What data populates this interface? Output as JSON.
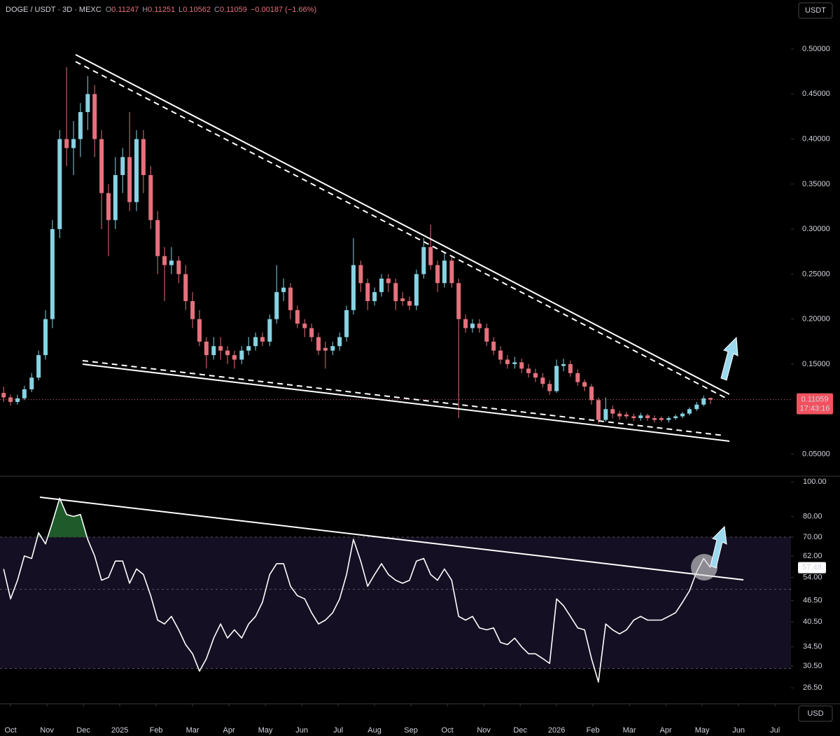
{
  "chart_data": {
    "type": "candlestick",
    "title": "DOGE / USDT · 3D · MEXC",
    "header_ohlc": [
      {
        "key": "O",
        "value": 0.11247
      },
      {
        "key": "H",
        "value": 0.11251
      },
      {
        "key": "L",
        "value": 0.10562
      },
      {
        "key": "C",
        "value": 0.11059
      }
    ],
    "change_label": "−0.00187 (−1.66%)",
    "y_axis_label": "USDT",
    "x_axis_label": "USD",
    "countdown": "17:43:16",
    "up_color": "#86d3e3",
    "down_color": "#e5717d",
    "log_scale": false,
    "grid": false,
    "xlim": [
      -0.29,
      21.44
    ],
    "xticks": [
      {
        "value": 0,
        "label": "Oct"
      },
      {
        "value": 1,
        "label": "Nov"
      },
      {
        "value": 2,
        "label": "Dec"
      },
      {
        "value": 3,
        "label": "2025"
      },
      {
        "value": 4,
        "label": "Feb"
      },
      {
        "value": 5,
        "label": "Mar"
      },
      {
        "value": 6,
        "label": "Apr"
      },
      {
        "value": 7,
        "label": "May"
      },
      {
        "value": 8,
        "label": "Jun"
      },
      {
        "value": 9,
        "label": "Jul"
      },
      {
        "value": 10,
        "label": "Aug"
      },
      {
        "value": 11,
        "label": "Sep"
      },
      {
        "value": 12,
        "label": "Oct"
      },
      {
        "value": 13,
        "label": "Nov"
      },
      {
        "value": 14,
        "label": "Dec"
      },
      {
        "value": 15,
        "label": "2026"
      },
      {
        "value": 16,
        "label": "Feb"
      },
      {
        "value": 17,
        "label": "Mar"
      },
      {
        "value": 18,
        "label": "Apr"
      },
      {
        "value": 19,
        "label": "May"
      },
      {
        "value": 20,
        "label": "Jun"
      },
      {
        "value": 21,
        "label": "Jul"
      }
    ],
    "ylim": [
      0.0255,
      0.5545
    ],
    "yticks": [
      {
        "value": 0.05,
        "label": "0.05000"
      },
      {
        "value": 0.15,
        "label": "0.15000"
      },
      {
        "value": 0.2,
        "label": "0.20000"
      },
      {
        "value": 0.25,
        "label": "0.25000"
      },
      {
        "value": 0.3,
        "label": "0.30000"
      },
      {
        "value": 0.35,
        "label": "0.35000"
      },
      {
        "value": 0.4,
        "label": "0.40000"
      },
      {
        "value": 0.45,
        "label": "0.45000"
      },
      {
        "value": 0.5,
        "label": "0.50000"
      }
    ],
    "x": [
      -0.19,
      0,
      0.19,
      0.38,
      0.58,
      0.77,
      0.96,
      1.15,
      1.35,
      1.54,
      1.73,
      1.92,
      2.12,
      2.31,
      2.5,
      2.69,
      2.88,
      3.08,
      3.27,
      3.46,
      3.65,
      3.85,
      4.04,
      4.23,
      4.42,
      4.62,
      4.81,
      5,
      5.19,
      5.38,
      5.58,
      5.77,
      5.96,
      6.15,
      6.35,
      6.54,
      6.73,
      6.92,
      7.12,
      7.31,
      7.5,
      7.69,
      7.88,
      8.08,
      8.27,
      8.46,
      8.65,
      8.85,
      9.04,
      9.23,
      9.42,
      9.62,
      9.81,
      10,
      10.19,
      10.38,
      10.58,
      10.77,
      10.96,
      11.15,
      11.35,
      11.54,
      11.73,
      11.92,
      12.12,
      12.31,
      12.5,
      12.69,
      12.88,
      13.08,
      13.27,
      13.46,
      13.65,
      13.85,
      14.04,
      14.23,
      14.42,
      14.62,
      14.81,
      15,
      15.19,
      15.38,
      15.58,
      15.77,
      15.96,
      16.15,
      16.35,
      16.54,
      16.73,
      16.92,
      17.12,
      17.31,
      17.5,
      17.69,
      17.88,
      18.08,
      18.27,
      18.46,
      18.65,
      18.85,
      19.04,
      19.23
    ],
    "open": [
      0.118,
      0.113,
      0.108,
      0.112,
      0.122,
      0.135,
      0.16,
      0.2,
      0.3,
      0.4,
      0.39,
      0.4,
      0.43,
      0.45,
      0.4,
      0.34,
      0.31,
      0.36,
      0.38,
      0.33,
      0.4,
      0.36,
      0.31,
      0.27,
      0.26,
      0.265,
      0.25,
      0.22,
      0.2,
      0.175,
      0.16,
      0.17,
      0.165,
      0.16,
      0.155,
      0.165,
      0.17,
      0.18,
      0.175,
      0.2,
      0.23,
      0.235,
      0.21,
      0.195,
      0.19,
      0.18,
      0.168,
      0.165,
      0.17,
      0.18,
      0.21,
      0.26,
      0.24,
      0.22,
      0.23,
      0.245,
      0.24,
      0.223,
      0.22,
      0.215,
      0.25,
      0.28,
      0.26,
      0.24,
      0.265,
      0.24,
      0.2,
      0.19,
      0.195,
      0.19,
      0.175,
      0.165,
      0.155,
      0.15,
      0.152,
      0.145,
      0.14,
      0.135,
      0.128,
      0.12,
      0.148,
      0.15,
      0.14,
      0.13,
      0.125,
      0.11,
      0.088,
      0.1,
      0.095,
      0.094,
      0.092,
      0.09,
      0.093,
      0.09,
      0.09,
      0.088,
      0.09,
      0.092,
      0.095,
      0.1,
      0.105,
      0.11247
    ],
    "high": [
      0.125,
      0.116,
      0.116,
      0.126,
      0.14,
      0.165,
      0.21,
      0.31,
      0.41,
      0.48,
      0.42,
      0.44,
      0.47,
      0.46,
      0.41,
      0.35,
      0.38,
      0.39,
      0.43,
      0.41,
      0.41,
      0.37,
      0.32,
      0.28,
      0.28,
      0.27,
      0.26,
      0.23,
      0.21,
      0.18,
      0.18,
      0.18,
      0.17,
      0.165,
      0.17,
      0.18,
      0.185,
      0.185,
      0.205,
      0.26,
      0.245,
      0.24,
      0.215,
      0.2,
      0.195,
      0.185,
      0.175,
      0.175,
      0.185,
      0.215,
      0.29,
      0.265,
      0.245,
      0.235,
      0.25,
      0.25,
      0.245,
      0.23,
      0.225,
      0.255,
      0.29,
      0.305,
      0.265,
      0.275,
      0.27,
      0.245,
      0.205,
      0.2,
      0.2,
      0.195,
      0.18,
      0.17,
      0.16,
      0.158,
      0.156,
      0.15,
      0.145,
      0.14,
      0.132,
      0.155,
      0.156,
      0.154,
      0.144,
      0.133,
      0.128,
      0.113,
      0.113,
      0.104,
      0.098,
      0.097,
      0.095,
      0.096,
      0.095,
      0.093,
      0.092,
      0.092,
      0.094,
      0.097,
      0.102,
      0.108,
      0.115,
      0.11251
    ],
    "low": [
      0.108,
      0.104,
      0.105,
      0.11,
      0.119,
      0.132,
      0.155,
      0.19,
      0.29,
      0.37,
      0.36,
      0.38,
      0.41,
      0.38,
      0.3,
      0.27,
      0.3,
      0.34,
      0.32,
      0.32,
      0.34,
      0.3,
      0.25,
      0.22,
      0.25,
      0.24,
      0.21,
      0.19,
      0.17,
      0.145,
      0.155,
      0.155,
      0.15,
      0.145,
      0.15,
      0.16,
      0.165,
      0.17,
      0.17,
      0.195,
      0.22,
      0.2,
      0.19,
      0.18,
      0.175,
      0.16,
      0.145,
      0.16,
      0.165,
      0.175,
      0.205,
      0.23,
      0.21,
      0.215,
      0.225,
      0.23,
      0.21,
      0.215,
      0.21,
      0.21,
      0.245,
      0.255,
      0.23,
      0.235,
      0.235,
      0.09,
      0.185,
      0.185,
      0.185,
      0.17,
      0.16,
      0.15,
      0.145,
      0.145,
      0.14,
      0.135,
      0.13,
      0.124,
      0.116,
      0.118,
      0.142,
      0.136,
      0.126,
      0.12,
      0.105,
      0.084,
      0.086,
      0.09,
      0.088,
      0.089,
      0.087,
      0.087,
      0.087,
      0.085,
      0.086,
      0.085,
      0.088,
      0.09,
      0.093,
      0.098,
      0.103,
      0.10562
    ],
    "close": [
      0.113,
      0.108,
      0.112,
      0.122,
      0.135,
      0.16,
      0.2,
      0.3,
      0.4,
      0.39,
      0.4,
      0.43,
      0.45,
      0.4,
      0.34,
      0.31,
      0.36,
      0.38,
      0.33,
      0.4,
      0.36,
      0.31,
      0.27,
      0.26,
      0.265,
      0.25,
      0.22,
      0.2,
      0.175,
      0.16,
      0.17,
      0.165,
      0.16,
      0.155,
      0.165,
      0.17,
      0.18,
      0.175,
      0.2,
      0.23,
      0.235,
      0.21,
      0.195,
      0.19,
      0.18,
      0.165,
      0.165,
      0.17,
      0.18,
      0.21,
      0.26,
      0.24,
      0.22,
      0.23,
      0.245,
      0.24,
      0.22,
      0.22,
      0.215,
      0.25,
      0.28,
      0.26,
      0.24,
      0.265,
      0.24,
      0.2,
      0.19,
      0.195,
      0.19,
      0.175,
      0.165,
      0.155,
      0.15,
      0.152,
      0.145,
      0.14,
      0.135,
      0.128,
      0.12,
      0.148,
      0.15,
      0.14,
      0.13,
      0.125,
      0.11,
      0.088,
      0.1,
      0.095,
      0.092,
      0.092,
      0.09,
      0.093,
      0.09,
      0.088,
      0.088,
      0.09,
      0.092,
      0.095,
      0.1,
      0.105,
      0.112,
      0.11059
    ],
    "indicator": {
      "type": "line",
      "color": "#ffffff",
      "log_scale": true,
      "bands": [
        70,
        50,
        30
      ],
      "band_color": "#140f22",
      "overbought_color": "#1e5a2a",
      "ylim": [
        23.9,
        103.7
      ],
      "yticks": [
        {
          "value": 100,
          "label": "100.00"
        },
        {
          "value": 80,
          "label": "80.00"
        },
        {
          "value": 70,
          "label": "70.00"
        },
        {
          "value": 62,
          "label": "62.00"
        },
        {
          "value": 54,
          "label": "54.00"
        },
        {
          "value": 46.5,
          "label": "46.50"
        },
        {
          "value": 40.5,
          "label": "40.50"
        },
        {
          "value": 34.5,
          "label": "34.50"
        },
        {
          "value": 30.5,
          "label": "30.50"
        },
        {
          "value": 26.5,
          "label": "26.50"
        }
      ],
      "values": [
        57,
        47,
        53,
        62,
        61,
        72,
        67,
        77,
        90,
        81,
        80,
        81,
        69,
        62,
        53,
        54,
        60,
        60,
        52,
        57,
        55,
        48,
        41,
        40,
        42,
        38.5,
        35,
        33,
        29.5,
        32,
        36.5,
        40,
        36.5,
        38.5,
        36.5,
        40,
        42,
        46,
        55,
        59,
        59,
        51,
        48,
        47,
        43,
        40,
        41,
        43,
        47,
        55,
        69,
        60,
        51,
        55,
        59,
        55,
        53,
        52,
        53,
        60,
        61,
        55,
        53,
        57,
        53,
        42,
        41,
        42,
        39,
        38.5,
        39,
        35.5,
        35,
        36.5,
        34.5,
        33,
        33,
        32,
        31,
        47,
        45,
        42,
        39,
        38.5,
        32,
        27.5,
        40,
        38.5,
        37.5,
        38.5,
        41,
        42,
        41,
        41,
        41,
        42,
        43,
        46,
        49.5,
        56,
        61,
        57.48
      ]
    }
  }
}
